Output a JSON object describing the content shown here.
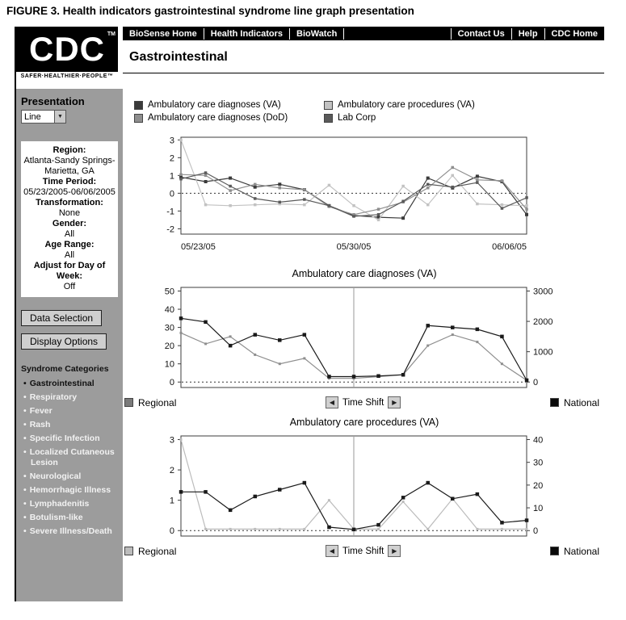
{
  "figure_caption": "FIGURE 3. Health indicators gastrointestinal syndrome line graph presentation",
  "logo": {
    "text": "CDC",
    "tm": "TM",
    "tagline": "SAFER·HEALTHIER·PEOPLE™"
  },
  "nav": {
    "left": [
      "BioSense Home",
      "Health Indicators",
      "BioWatch"
    ],
    "right": [
      "Contact Us",
      "Help",
      "CDC Home"
    ]
  },
  "page_title": "Gastrointestinal",
  "sidebar": {
    "presentation_label": "Presentation",
    "presentation_value": "Line",
    "info": [
      {
        "label": "Region:",
        "value": "Atlanta-Sandy Springs-Marietta, GA"
      },
      {
        "label": "Time Period:",
        "value": "05/23/2005-06/06/2005"
      },
      {
        "label": "Transformation:",
        "value": "None"
      },
      {
        "label": "Gender:",
        "value": "All"
      },
      {
        "label": "Age Range:",
        "value": "All"
      },
      {
        "label": "Adjust for Day of Week:",
        "value": "Off"
      }
    ],
    "buttons": [
      "Data Selection",
      "Display Options"
    ],
    "categories_label": "Syndrome Categories",
    "categories": [
      "Gastrointestinal",
      "Respiratory",
      "Fever",
      "Rash",
      "Specific Infection",
      "Localized Cutaneous Lesion",
      "Neurological",
      "Hemorrhagic Illness",
      "Lymphadenitis",
      "Botulism-like",
      "Severe Illness/Death"
    ]
  },
  "legend": [
    {
      "label": "Ambulatory care diagnoses (VA)",
      "color": "#3a3a3a"
    },
    {
      "label": "Ambulatory care procedures (VA)",
      "color": "#c2c2c2"
    },
    {
      "label": "Ambulatory care diagnoses (DoD)",
      "color": "#8e8e8e"
    },
    {
      "label": "Lab Corp",
      "color": "#5a5a5a"
    }
  ],
  "time_shift": {
    "label": "Time Shift",
    "prev_icon": "◀",
    "next_icon": "▶"
  },
  "chart_data": [
    {
      "type": "line",
      "title": "",
      "x_labels": [
        "05/23/05",
        "05/30/05",
        "06/06/05"
      ],
      "ylim_left": [
        -2.3,
        3.15
      ],
      "yticks_left": [
        3,
        2,
        1,
        0,
        -1,
        -2
      ],
      "zero_line": 0,
      "series": [
        {
          "name": "Ambulatory care diagnoses (VA)",
          "color": "#3a3a3a",
          "marker_size": 4,
          "values": [
            0.9,
            0.65,
            0.85,
            0.35,
            0.5,
            0.2,
            -0.7,
            -1.25,
            -1.35,
            -1.4,
            0.85,
            0.3,
            0.95,
            0.65,
            -1.2
          ]
        },
        {
          "name": "Ambulatory care procedures (VA)",
          "color": "#c2c2c2",
          "marker_size": 3.5,
          "values": [
            3.0,
            -0.65,
            -0.7,
            -0.65,
            -0.6,
            -0.65,
            0.45,
            -0.7,
            -1.5,
            0.4,
            -0.65,
            1.0,
            -0.6,
            -0.65,
            -0.7
          ]
        },
        {
          "name": "Ambulatory care diagnoses (DoD)",
          "color": "#8e8e8e",
          "marker_size": 3.5,
          "values": [
            1.05,
            1.0,
            0.15,
            0.5,
            0.3,
            0.2,
            -0.75,
            -1.2,
            -0.9,
            -0.5,
            0.3,
            1.45,
            0.75,
            0.7,
            -0.9
          ]
        },
        {
          "name": "Lab Corp",
          "color": "#5a5a5a",
          "marker_size": 3.5,
          "values": [
            0.8,
            1.15,
            0.4,
            -0.3,
            -0.5,
            -0.35,
            -0.7,
            -1.3,
            -1.2,
            -0.45,
            0.5,
            0.35,
            0.6,
            -0.85,
            -0.25
          ]
        }
      ]
    },
    {
      "type": "line",
      "title": "Ambulatory care diagnoses (VA)",
      "ylim_left": [
        -3,
        52
      ],
      "yticks_left": [
        50,
        40,
        30,
        20,
        10,
        0
      ],
      "ylim_right": [
        -180,
        3120
      ],
      "yticks_right": [
        3000,
        2000,
        1000,
        0
      ],
      "zero_line": 0,
      "vline_frac": 0.5,
      "legend_left": "Regional",
      "legend_left_color": "#7a7a7a",
      "legend_right": "National",
      "legend_right_color": "#0a0a0a",
      "series": [
        {
          "name": "Regional",
          "axis": "left",
          "color": "#8e8e8e",
          "marker_size": 3,
          "values": [
            27,
            21,
            25,
            15,
            10,
            13,
            2,
            2,
            3,
            4,
            20,
            26,
            22,
            10,
            1
          ]
        },
        {
          "name": "National",
          "axis": "right",
          "color": "#1a1a1a",
          "marker_size": 4.5,
          "values": [
            2100,
            1980,
            1200,
            1560,
            1380,
            1560,
            180,
            180,
            200,
            240,
            1860,
            1800,
            1740,
            1500,
            60
          ]
        }
      ]
    },
    {
      "type": "line",
      "title": "Ambulatory care procedures (VA)",
      "ylim_left": [
        -0.18,
        3.12
      ],
      "yticks_left": [
        3,
        2,
        1,
        0
      ],
      "ylim_right": [
        -2.4,
        41.6
      ],
      "yticks_right": [
        40,
        30,
        20,
        10,
        0
      ],
      "zero_line": 0,
      "vline_frac": 0.5,
      "legend_left": "Regional",
      "legend_left_color": "#bcbcbc",
      "legend_right": "National",
      "legend_right_color": "#0a0a0a",
      "series": [
        {
          "name": "Regional",
          "axis": "left",
          "color": "#bcbcbc",
          "marker_size": 3,
          "values": [
            3.0,
            0.05,
            0.05,
            0.05,
            0.05,
            0.05,
            1.0,
            0.05,
            0.05,
            0.95,
            0.05,
            1.05,
            0.05,
            0.05,
            0.05
          ]
        },
        {
          "name": "National",
          "axis": "right",
          "color": "#1a1a1a",
          "marker_size": 4.5,
          "values": [
            17,
            17,
            9,
            15,
            18,
            21,
            1.5,
            0.5,
            2.5,
            14.5,
            21,
            14,
            16,
            3.5,
            4.5
          ]
        }
      ]
    }
  ]
}
